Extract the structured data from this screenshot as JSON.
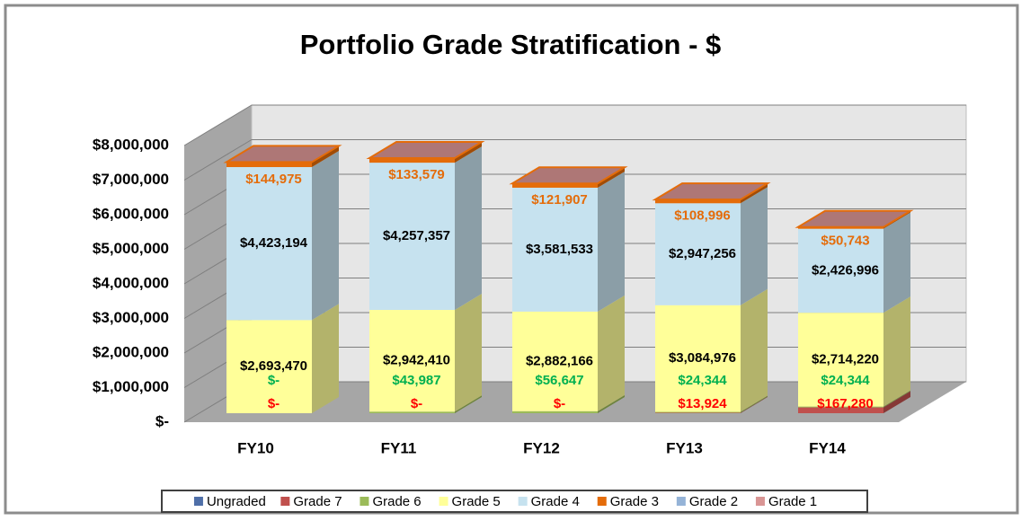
{
  "chart_data": {
    "type": "bar3d_stacked",
    "title": "Portfolio Grade Stratification - $",
    "categories": [
      "FY10",
      "FY11",
      "FY12",
      "FY13",
      "FY14"
    ],
    "ylim": [
      0,
      8000000
    ],
    "yticks": [
      {
        "value": 0,
        "label": "$-"
      },
      {
        "value": 1000000,
        "label": "$1,000,000"
      },
      {
        "value": 2000000,
        "label": "$2,000,000"
      },
      {
        "value": 3000000,
        "label": "$3,000,000"
      },
      {
        "value": 4000000,
        "label": "$4,000,000"
      },
      {
        "value": 5000000,
        "label": "$5,000,000"
      },
      {
        "value": 6000000,
        "label": "$6,000,000"
      },
      {
        "value": 7000000,
        "label": "$7,000,000"
      },
      {
        "value": 8000000,
        "label": "$8,000,000"
      }
    ],
    "grid": true,
    "legend": "bottom",
    "series": [
      {
        "name": "Ungraded",
        "color": "#4f6fa8",
        "values": [
          0,
          0,
          0,
          0,
          0
        ]
      },
      {
        "name": "Grade 7",
        "color": "#c0504d",
        "label_color": "#ff0000",
        "values": [
          0,
          0,
          0,
          13924,
          167280
        ],
        "value_labels": [
          "$-",
          "$-",
          "$-",
          "$13,924",
          "$167,280"
        ]
      },
      {
        "name": "Grade 6",
        "color": "#9bbb59",
        "label_color": "#00b050",
        "values": [
          0,
          43987,
          56647,
          24344,
          24344
        ],
        "value_labels": [
          "$-",
          "$43,987",
          "$56,647",
          "$24,344",
          "$24,344"
        ]
      },
      {
        "name": "Grade 5",
        "color": "#ffff99",
        "label_color": "#000000",
        "values": [
          2693470,
          2942410,
          2882166,
          3084976,
          2714220
        ],
        "value_labels": [
          "$2,693,470",
          "$2,942,410",
          "$2,882,166",
          "$3,084,976",
          "$2,714,220"
        ]
      },
      {
        "name": "Grade 4",
        "color": "#c6e2ef",
        "label_color": "#000000",
        "values": [
          4423194,
          4257357,
          3581533,
          2947256,
          2426996
        ],
        "value_labels": [
          "$4,423,194",
          "$4,257,357",
          "$3,581,533",
          "$2,947,256",
          "$2,426,996"
        ]
      },
      {
        "name": "Grade 3",
        "color": "#e46c0a",
        "label_color": "#e46c0a",
        "values": [
          144975,
          133579,
          121907,
          108996,
          50743
        ],
        "value_labels": [
          "$144,975",
          "$133,579",
          "$121,907",
          "$108,996",
          "$50,743"
        ]
      },
      {
        "name": "Grade 2",
        "color": "#95b3d7",
        "values": [
          0,
          0,
          0,
          0,
          0
        ]
      },
      {
        "name": "Grade 1",
        "color": "#d99594",
        "values": [
          0,
          0,
          0,
          0,
          0
        ]
      }
    ]
  }
}
